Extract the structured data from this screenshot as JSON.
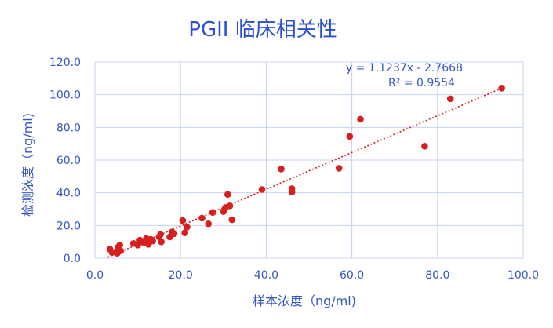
{
  "chart_data": {
    "type": "scatter",
    "title": "PGII 临床相关性",
    "xlabel": "样本浓度（ng/ml)",
    "ylabel": "检测浓度（ng/ml)",
    "xlim": [
      0,
      100
    ],
    "ylim": [
      0,
      120
    ],
    "xticks": [
      "0.0",
      "20.0",
      "40.0",
      "60.0",
      "80.0",
      "100.0"
    ],
    "yticks": [
      "0.0",
      "20.0",
      "40.0",
      "60.0",
      "80.0",
      "100.0",
      "120.0"
    ],
    "grid": true,
    "point_color": "#d61f1f",
    "trend_color": "#d61f1f",
    "trendline": {
      "slope": 1.1237,
      "intercept": -2.7668,
      "x_range": [
        3,
        95
      ]
    },
    "equation": "y = 1.1237x - 2.7668",
    "r_squared": "R² = 0.9554",
    "series": [
      {
        "x": [
          3.5,
          4.0,
          5.0,
          5.5,
          6.0,
          5.8,
          5.2,
          9.0,
          10.0,
          10.5,
          11.0,
          11.5,
          12.0,
          12.5,
          13.0,
          13.5,
          15.0,
          15.5,
          15.3,
          17.5,
          18.0,
          18.5,
          20.5,
          21.0,
          21.5,
          25.0,
          26.5,
          27.5,
          30.0,
          30.5,
          31.0,
          31.5,
          32.0,
          39.0,
          43.5,
          46.0,
          46.0,
          57.0,
          59.5,
          62.0,
          77.0,
          83.0,
          95.0
        ],
        "y": [
          5.5,
          3.5,
          4.0,
          7.0,
          4.5,
          8.0,
          3.0,
          9.0,
          8.0,
          11.0,
          10.0,
          9.5,
          12.0,
          8.5,
          11.5,
          10.5,
          13.0,
          10.0,
          14.5,
          13.0,
          16.0,
          15.0,
          23.0,
          15.5,
          19.0,
          24.5,
          21.0,
          28.0,
          28.5,
          31.0,
          39.0,
          32.0,
          23.5,
          42.0,
          54.5,
          40.5,
          42.5,
          55.0,
          74.5,
          85.0,
          68.5,
          97.5,
          104.0
        ]
      }
    ]
  }
}
